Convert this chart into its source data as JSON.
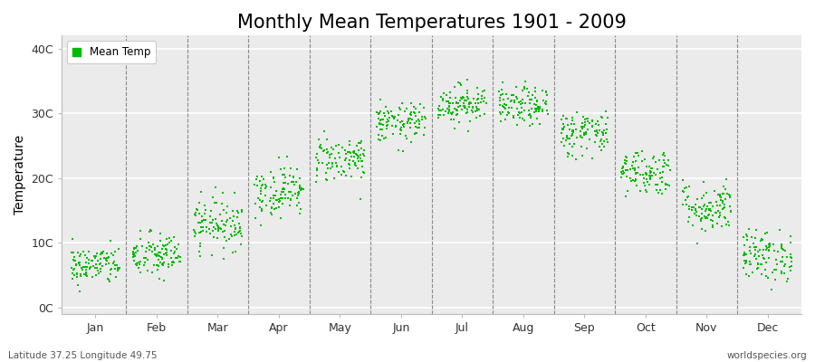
{
  "title": "Monthly Mean Temperatures 1901 - 2009",
  "ylabel": "Temperature",
  "ytick_labels": [
    "0C",
    "10C",
    "20C",
    "30C",
    "40C"
  ],
  "ytick_values": [
    0,
    10,
    20,
    30,
    40
  ],
  "ylim": [
    -1,
    42
  ],
  "months": [
    "Jan",
    "Feb",
    "Mar",
    "Apr",
    "May",
    "Jun",
    "Jul",
    "Aug",
    "Sep",
    "Oct",
    "Nov",
    "Dec"
  ],
  "dot_color": "#00bb00",
  "legend_label": "Mean Temp",
  "bottom_left_text": "Latitude 37.25 Longitude 49.75",
  "bottom_right_text": "worldspecies.org",
  "plot_bg_color": "#ebebeb",
  "title_fontsize": 15,
  "axis_label_fontsize": 10,
  "tick_fontsize": 9,
  "seed": 42,
  "monthly_mean_temps": [
    6.5,
    8.0,
    13.0,
    18.0,
    23.0,
    28.5,
    31.5,
    31.0,
    27.0,
    21.0,
    15.5,
    8.0
  ],
  "monthly_spread": [
    1.5,
    1.8,
    2.0,
    2.0,
    1.8,
    1.5,
    1.5,
    1.5,
    1.8,
    1.8,
    2.0,
    2.0
  ],
  "n_points": 109
}
